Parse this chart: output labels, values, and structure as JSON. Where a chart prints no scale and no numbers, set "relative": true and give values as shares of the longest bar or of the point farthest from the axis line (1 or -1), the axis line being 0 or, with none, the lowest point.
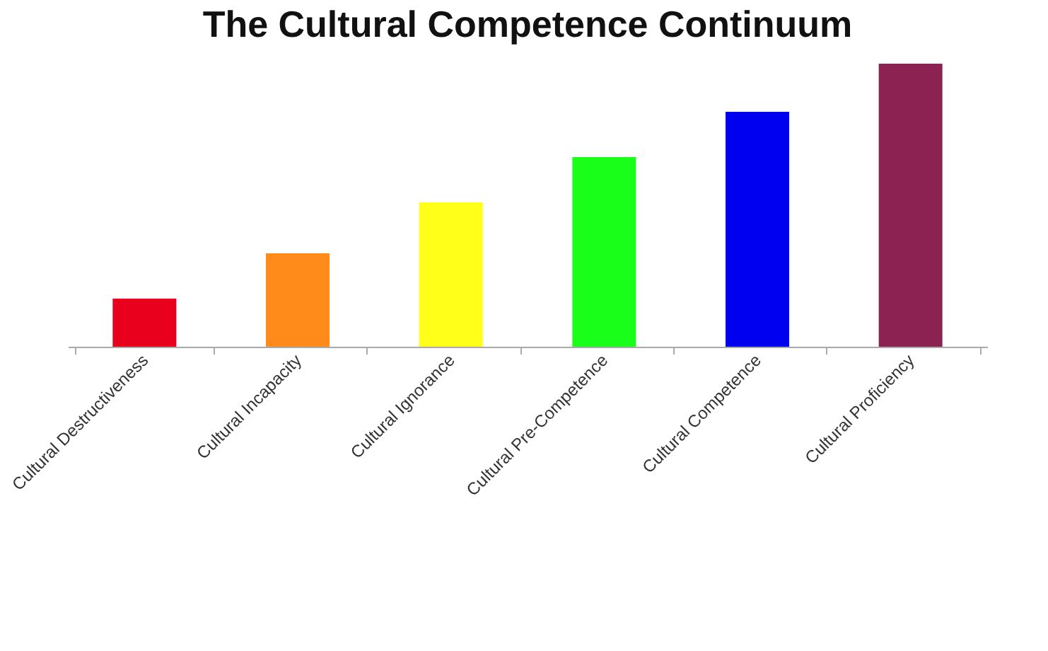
{
  "chart_data": {
    "type": "bar",
    "title": "The Cultural Competence Continuum",
    "relative": true,
    "categories": [
      "Cultural Destructiveness",
      "Cultural Incapacity",
      "Cultural Ignorance",
      "Cultural Pre-Competence",
      "Cultural Competence",
      "Cultural Proficiency"
    ],
    "values": [
      0.17,
      0.33,
      0.51,
      0.67,
      0.83,
      1
    ],
    "colors": [
      "#e8001c",
      "#ff8c1a",
      "#ffff1a",
      "#1aff1a",
      "#0000f0",
      "#8b2252"
    ],
    "grid": false,
    "legend": false
  }
}
